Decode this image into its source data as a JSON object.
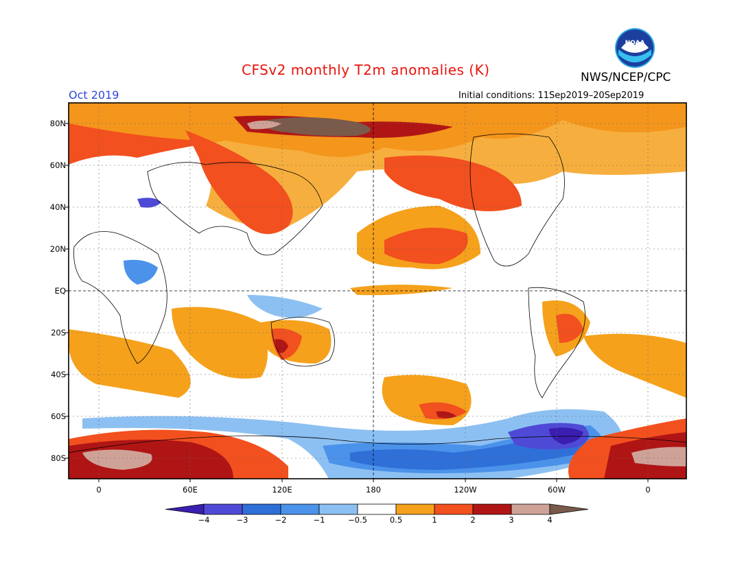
{
  "header": {
    "title": "CFSv2 monthly T2m anomalies (K)",
    "org": "NWS/NCEP/CPC",
    "month": "Oct 2019",
    "initial_conditions": "Initial conditions: 11Sep2019–20Sep2019"
  },
  "logo": {
    "icon": "noaa-logo",
    "text": "NOAA"
  },
  "map": {
    "lat_labels": [
      "80N",
      "60N",
      "40N",
      "20N",
      "EQ",
      "20S",
      "40S",
      "60S",
      "80S"
    ],
    "lon_labels": [
      "0",
      "60E",
      "120E",
      "180",
      "120W",
      "60W",
      "0"
    ]
  },
  "colorbar": {
    "labels": [
      "−4",
      "−3",
      "−2",
      "−1",
      "−0.5",
      "0.5",
      "1",
      "2",
      "3",
      "4"
    ],
    "colors": [
      "#3a1eb0",
      "#4f4ad6",
      "#2f6fd8",
      "#4b92ea",
      "#8dc0f2",
      "#ffffff",
      "#f5a11c",
      "#f2501e",
      "#b01515",
      "#cfa298",
      "#7a5a4a"
    ]
  }
}
